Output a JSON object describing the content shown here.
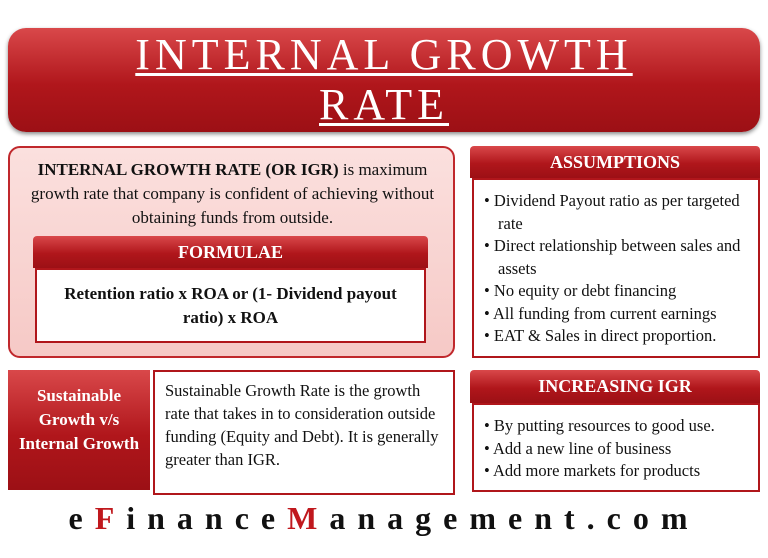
{
  "header": {
    "title": "INTERNAL GROWTH RATE"
  },
  "definition": {
    "term": "INTERNAL GROWTH RATE (OR IGR)",
    "text": " is maximum growth rate that company is confident of achieving without obtaining funds from outside."
  },
  "formulae": {
    "heading": "FORMULAE",
    "formula": "Retention ratio x ROA or (1- Dividend payout ratio) x ROA"
  },
  "assumptions": {
    "heading": "ASSUMPTIONS",
    "items": [
      "Dividend Payout ratio as per targeted rate",
      "Direct relationship between sales and assets",
      "No equity or debt financing",
      "All funding from current earnings",
      "EAT & Sales in direct proportion."
    ]
  },
  "comparison": {
    "label": "Sustainable Growth v/s Internal Growth",
    "text": "Sustainable Growth Rate is the growth rate that takes in to consideration outside funding (Equity and Debt). It is generally greater than IGR."
  },
  "increasing": {
    "heading": "INCREASING IGR",
    "items": [
      "By putting resources to good use.",
      "Add a new line of business",
      "Add more markets for products"
    ]
  },
  "footer": {
    "parts": [
      "e",
      "F",
      "inance",
      "M",
      "anagement.com"
    ]
  }
}
